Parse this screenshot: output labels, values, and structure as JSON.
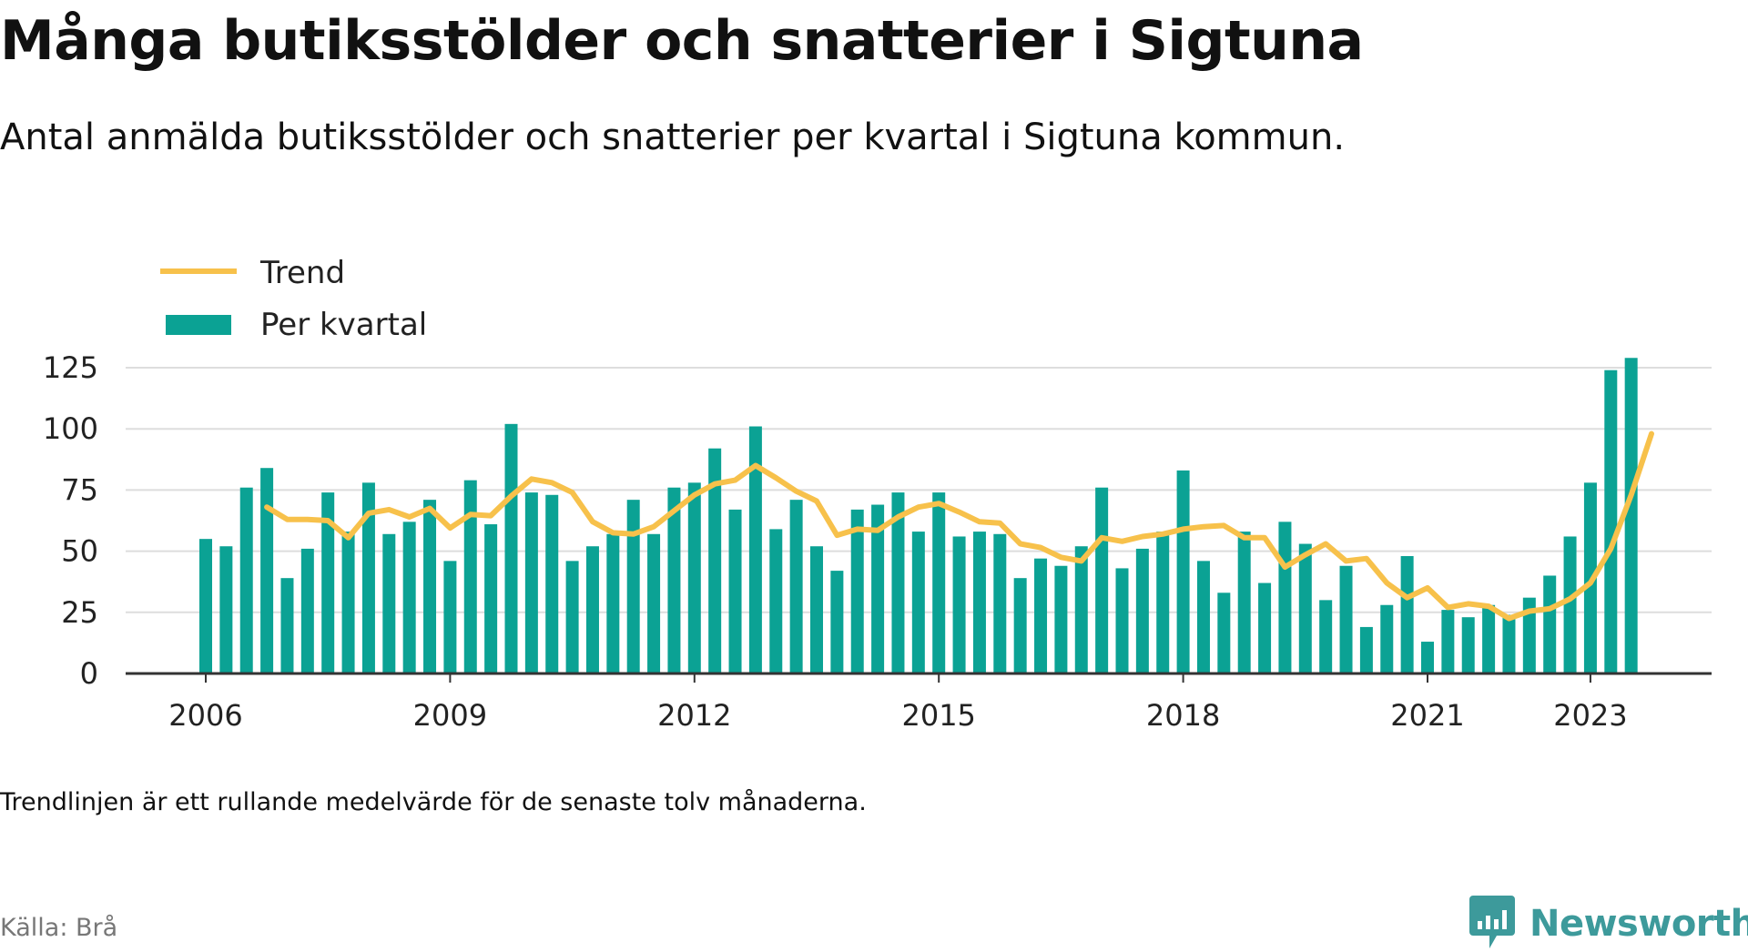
{
  "title": "Många butiksstölder och snatterier i Sigtuna",
  "subtitle": "Antal anmälda butiksstölder och snatterier per kvartal i Sigtuna kommun.",
  "note": "Trendlinjen är ett rullande medelvärde för de senaste tolv månaderna.",
  "source": "Källa: Brå",
  "brand": {
    "name": "Newsworthy",
    "icon": "newsworthy-logo-icon",
    "color": "#3d9a9b"
  },
  "colors": {
    "bars": "#0ba294",
    "trend": "#f7c14b",
    "grid": "#dddddd",
    "axis": "#333333"
  },
  "chart_data": {
    "type": "bar",
    "title": "Många butiksstölder och snatterier i Sigtuna",
    "subtitle": "Antal anmälda butiksstölder och snatterier per kvartal i Sigtuna kommun.",
    "xlabel": "",
    "ylabel": "",
    "ylim": [
      0,
      130
    ],
    "yticks": [
      "0",
      "25",
      "50",
      "75",
      "100",
      "125"
    ],
    "xticks": [
      "2006",
      "2009",
      "2012",
      "2015",
      "2018",
      "2021",
      "2023"
    ],
    "grid": "horizontal",
    "legend_position": "top-left",
    "legend": [
      "Trend",
      "Per kvartal"
    ],
    "categories": [
      "2006 Q1",
      "2006 Q2",
      "2006 Q3",
      "2006 Q4",
      "2007 Q1",
      "2007 Q2",
      "2007 Q3",
      "2007 Q4",
      "2008 Q1",
      "2008 Q2",
      "2008 Q3",
      "2008 Q4",
      "2009 Q1",
      "2009 Q2",
      "2009 Q3",
      "2009 Q4",
      "2010 Q1",
      "2010 Q2",
      "2010 Q3",
      "2010 Q4",
      "2011 Q1",
      "2011 Q2",
      "2011 Q3",
      "2011 Q4",
      "2012 Q1",
      "2012 Q2",
      "2012 Q3",
      "2012 Q4",
      "2013 Q1",
      "2013 Q2",
      "2013 Q3",
      "2013 Q4",
      "2014 Q1",
      "2014 Q2",
      "2014 Q3",
      "2014 Q4",
      "2015 Q1",
      "2015 Q2",
      "2015 Q3",
      "2015 Q4",
      "2016 Q1",
      "2016 Q2",
      "2016 Q3",
      "2016 Q4",
      "2017 Q1",
      "2017 Q2",
      "2017 Q3",
      "2017 Q4",
      "2018 Q1",
      "2018 Q2",
      "2018 Q3",
      "2018 Q4",
      "2019 Q1",
      "2019 Q2",
      "2019 Q3",
      "2019 Q4",
      "2020 Q1",
      "2020 Q2",
      "2020 Q3",
      "2020 Q4",
      "2021 Q1",
      "2021 Q2",
      "2021 Q3",
      "2021 Q4",
      "2022 Q1",
      "2022 Q2",
      "2022 Q3",
      "2022 Q4",
      "2023 Q1",
      "2023 Q2",
      "2023 Q3",
      "2023 Q4"
    ],
    "series": [
      {
        "name": "Per kvartal",
        "type": "bar",
        "values": [
          55,
          52,
          76,
          84,
          39,
          51,
          74,
          58,
          78,
          57,
          62,
          71,
          46,
          79,
          61,
          102,
          74,
          73,
          46,
          52,
          57,
          71,
          57,
          76,
          78,
          92,
          67,
          101,
          59,
          71,
          52,
          42,
          67,
          69,
          74,
          58,
          74,
          56,
          58,
          57,
          39,
          47,
          44,
          52,
          76,
          43,
          51,
          58,
          83,
          46,
          33,
          58,
          37,
          62,
          53,
          30,
          44,
          19,
          28,
          48,
          13,
          26,
          23,
          28,
          24,
          31,
          40,
          56,
          78,
          124,
          129,
          null
        ]
      },
      {
        "name": "Trend",
        "type": "line",
        "values": [
          null,
          null,
          null,
          68,
          63,
          63,
          62.5,
          55.5,
          65.5,
          67,
          64,
          67.5,
          59.5,
          65,
          64.5,
          72.5,
          79.5,
          78,
          74,
          62,
          57.5,
          57,
          60,
          66.5,
          73,
          77.5,
          79,
          85,
          80,
          74.5,
          70.5,
          56.5,
          59,
          58.5,
          64,
          68,
          69.5,
          66,
          62,
          61.5,
          53,
          51.5,
          47.5,
          46,
          55.5,
          54,
          56,
          57,
          59,
          60,
          60.5,
          55.5,
          55.5,
          43.5,
          48.5,
          53,
          46,
          47,
          37,
          31,
          35,
          27,
          28.5,
          27.5,
          22.5,
          25.5,
          26.5,
          30.5,
          37,
          51,
          73,
          98
        ]
      }
    ]
  }
}
